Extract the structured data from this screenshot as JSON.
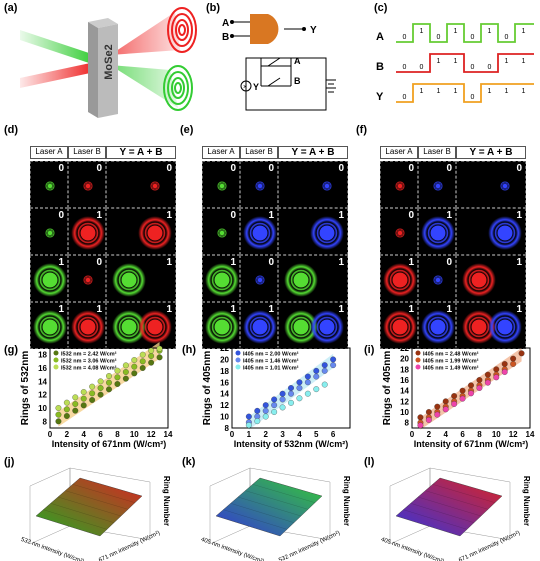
{
  "panels": {
    "a": "(a)",
    "b": "(b)",
    "c": "(c)",
    "d": "(d)",
    "e": "(e)",
    "f": "(f)",
    "g": "(g)",
    "h": "(h)",
    "i": "(i)",
    "j": "(j)",
    "k": "(k)",
    "l": "(l)"
  },
  "schematic": {
    "material": "MoSe2"
  },
  "gate": {
    "in_a": "A",
    "in_b": "B",
    "out": "Y",
    "circuit_a": "A",
    "circuit_b": "B",
    "circuit_y": "Y"
  },
  "timing": {
    "rows": [
      {
        "name": "A",
        "color": "#66cc33",
        "bits": [
          "0",
          "1",
          "0",
          "1",
          "0",
          "1",
          "0",
          "1"
        ]
      },
      {
        "name": "B",
        "color": "#dd2222",
        "bits": [
          "0",
          "0",
          "1",
          "1",
          "0",
          "0",
          "1",
          "1"
        ]
      },
      {
        "name": "Y",
        "color": "#f0a020",
        "bits": [
          "0",
          "1",
          "1",
          "1",
          "0",
          "1",
          "1",
          "1"
        ]
      }
    ]
  },
  "grids": [
    {
      "key": "d",
      "headers": [
        "Laser A",
        "Laser B",
        "Y = A + B"
      ],
      "colA": "#55dd33",
      "colB": "#ee2222",
      "rows": [
        [
          "0",
          "0",
          "0"
        ],
        [
          "0",
          "1",
          "1"
        ],
        [
          "1",
          "0",
          "1"
        ],
        [
          "1",
          "1",
          "1"
        ]
      ]
    },
    {
      "key": "e",
      "headers": [
        "Laser A",
        "Laser B",
        "Y = A + B"
      ],
      "colA": "#55dd33",
      "colB": "#3344ff",
      "rows": [
        [
          "0",
          "0",
          "0"
        ],
        [
          "0",
          "1",
          "1"
        ],
        [
          "1",
          "0",
          "1"
        ],
        [
          "1",
          "1",
          "1"
        ]
      ]
    },
    {
      "key": "f",
      "headers": [
        "Laser A",
        "Laser B",
        "Y = A + B"
      ],
      "colA": "#ee2222",
      "colB": "#3344ff",
      "rows": [
        [
          "0",
          "0",
          "0"
        ],
        [
          "0",
          "1",
          "1"
        ],
        [
          "1",
          "0",
          "1"
        ],
        [
          "1",
          "1",
          "1"
        ]
      ]
    }
  ],
  "chart_data": [
    {
      "type": "scatter",
      "ylabel": "Rings of 532nm",
      "xlabel": "Intensity of 671nm (W/cm²)",
      "xlim": [
        0,
        14
      ],
      "ylim": [
        7,
        19
      ],
      "xticks": [
        "0",
        "2",
        "4",
        "6",
        "8",
        "10",
        "12",
        "14"
      ],
      "yticks": [
        "8",
        "10",
        "12",
        "14",
        "16",
        "18"
      ],
      "series": [
        {
          "name": "I532 nm = 2.42 W/cm²",
          "color": "#557711",
          "x": [
            1,
            2,
            3,
            4,
            5,
            6,
            7,
            8,
            9,
            10,
            11,
            12,
            13
          ],
          "y": [
            8,
            8.8,
            9.6,
            10.4,
            11.2,
            12,
            12.8,
            13.6,
            14.4,
            15.2,
            16,
            16.8,
            17.6
          ]
        },
        {
          "name": "I532 nm = 3.06 W/cm²",
          "color": "#88bb22",
          "x": [
            1,
            2,
            3,
            4,
            5,
            6,
            7,
            8,
            9,
            10,
            11,
            12,
            13
          ],
          "y": [
            9,
            9.8,
            10.6,
            11.4,
            12.2,
            13,
            13.8,
            14.6,
            15.4,
            16.2,
            17,
            17.8,
            18.6
          ]
        },
        {
          "name": "I532 nm = 4.08 W/cm²",
          "color": "#bbdd55",
          "x": [
            1,
            2,
            3,
            4,
            5,
            6,
            7,
            8,
            9,
            10,
            11,
            12,
            13
          ],
          "y": [
            10,
            10.8,
            11.6,
            12.4,
            13.2,
            14,
            14.8,
            15.6,
            16.4,
            17.2,
            18,
            18.6,
            18.9
          ]
        }
      ],
      "band": "#f5d08a"
    },
    {
      "type": "scatter",
      "ylabel": "Rings of 405nm",
      "xlabel": "Intensity of 532nm (W/cm²)",
      "xlim": [
        0,
        7
      ],
      "ylim": [
        8,
        22
      ],
      "xticks": [
        "0",
        "1",
        "2",
        "3",
        "4",
        "5",
        "6"
      ],
      "yticks": [
        "8",
        "10",
        "12",
        "14",
        "16",
        "18",
        "20",
        "22"
      ],
      "series": [
        {
          "name": "I405 nm = 2.00 W/cm²",
          "color": "#3355dd",
          "x": [
            1,
            1.5,
            2,
            2.5,
            3,
            3.5,
            4,
            4.5,
            5,
            5.5,
            6
          ],
          "y": [
            10,
            11,
            12,
            13,
            14,
            15,
            16,
            17,
            18,
            19,
            20
          ]
        },
        {
          "name": "I405 nm = 1.46 W/cm²",
          "color": "#6688ee",
          "x": [
            1,
            1.5,
            2,
            2.5,
            3,
            3.5,
            4,
            4.5,
            5,
            5.5,
            6
          ],
          "y": [
            9,
            10,
            11,
            12,
            13,
            14,
            15,
            16,
            17,
            18,
            19
          ]
        },
        {
          "name": "I405 nm = 1.01 W/cm²",
          "color": "#88eeee",
          "x": [
            1,
            1.5,
            2,
            2.5,
            3,
            3.5,
            4,
            4.5,
            5,
            5.5
          ],
          "y": [
            8.5,
            9.2,
            10,
            10.8,
            11.6,
            12.4,
            13.2,
            14,
            14.8,
            15.6
          ]
        }
      ],
      "band": "#bfeaf5"
    },
    {
      "type": "scatter",
      "ylabel": "Rings of 405nm",
      "xlabel": "Intensity of 671nm (W/cm²)",
      "xlim": [
        0,
        14
      ],
      "ylim": [
        7,
        22
      ],
      "xticks": [
        "0",
        "2",
        "4",
        "6",
        "8",
        "10",
        "12",
        "14"
      ],
      "yticks": [
        "8",
        "10",
        "12",
        "14",
        "16",
        "18",
        "20",
        "22"
      ],
      "series": [
        {
          "name": "I405 nm = 2.48 W/cm²",
          "color": "#993311",
          "x": [
            1,
            2,
            3,
            4,
            5,
            6,
            7,
            8,
            9,
            10,
            11,
            12,
            13
          ],
          "y": [
            9,
            10,
            11,
            12,
            13,
            14,
            15,
            16,
            17,
            18,
            19,
            20,
            21
          ]
        },
        {
          "name": "I405 nm = 1.99 W/cm²",
          "color": "#cc5522",
          "x": [
            1,
            2,
            3,
            4,
            5,
            6,
            7,
            8,
            9,
            10,
            11,
            12
          ],
          "y": [
            8,
            9,
            10,
            11,
            12,
            13,
            14,
            15,
            16,
            17,
            18,
            19
          ]
        },
        {
          "name": "I405 nm = 1.49 W/cm²",
          "color": "#ee44aa",
          "x": [
            1,
            2,
            3,
            4,
            5,
            6,
            7,
            8,
            9,
            10,
            11
          ],
          "y": [
            7.5,
            8.5,
            9.5,
            10.5,
            11.5,
            12.5,
            13.5,
            14.5,
            15.5,
            16.5,
            17.5
          ]
        }
      ],
      "band": "#f2b593"
    }
  ],
  "surfaces": [
    {
      "xl": "532 nm intensity (W/cm²)",
      "yl": "671 nm intensity (W/cm²)",
      "zl": "Ring Number",
      "c1": "#2a2",
      "c2": "#d22"
    },
    {
      "xl": "405 nm intensity (W/cm²)",
      "yl": "532 nm intensity (W/cm²)",
      "zl": "Ring Number",
      "c1": "#33d",
      "c2": "#3c3"
    },
    {
      "xl": "405 nm intensity (W/cm²)",
      "yl": "671 nm intensity (W/cm²)",
      "zl": "Ring Number",
      "c1": "#33d",
      "c2": "#d22"
    }
  ]
}
